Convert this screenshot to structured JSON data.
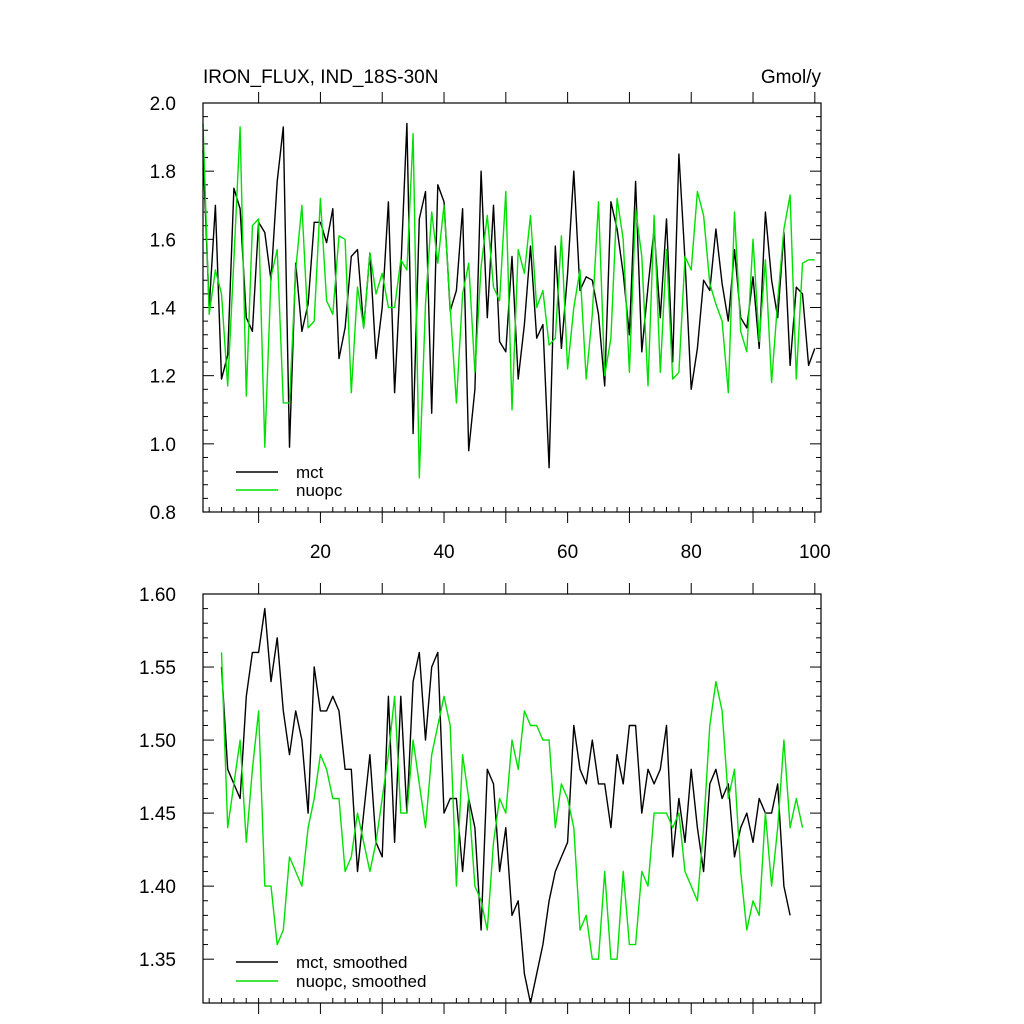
{
  "colors": {
    "mct": "#000000",
    "nuopc": "#00e000"
  },
  "chart_data": [
    {
      "type": "line",
      "title": "IRON_FLUX, IND_18S-30N",
      "units": "Gmol/y",
      "xlim": [
        1,
        101
      ],
      "ylim": [
        0.8,
        2.0
      ],
      "yticks": [
        0.8,
        1.0,
        1.2,
        1.4,
        1.6,
        1.8,
        2.0
      ],
      "ytick_labels": [
        "0.8",
        "1.0",
        "1.2",
        "1.4",
        "1.6",
        "1.8",
        "2.0"
      ],
      "xticks": [
        20,
        40,
        60,
        80,
        100
      ],
      "xtick_labels": [
        "20",
        "40",
        "60",
        "80",
        "100"
      ],
      "legend": "bottom-left",
      "series": [
        {
          "name": "mct",
          "color": "#000000",
          "x_start": 1,
          "values": [
            1.86,
            1.4,
            1.7,
            1.19,
            1.26,
            1.75,
            1.69,
            1.37,
            1.33,
            1.65,
            1.62,
            1.48,
            1.77,
            1.93,
            0.99,
            1.53,
            1.33,
            1.41,
            1.65,
            1.65,
            1.59,
            1.69,
            1.25,
            1.34,
            1.55,
            1.57,
            1.34,
            1.56,
            1.25,
            1.4,
            1.71,
            1.15,
            1.51,
            1.94,
            1.03,
            1.66,
            1.74,
            1.09,
            1.76,
            1.71,
            1.39,
            1.45,
            1.69,
            0.98,
            1.16,
            1.8,
            1.37,
            1.7,
            1.3,
            1.27,
            1.55,
            1.19,
            1.35,
            1.58,
            1.31,
            1.35,
            0.93,
            1.58,
            1.28,
            1.5,
            1.8,
            1.45,
            1.49,
            1.48,
            1.38,
            1.17,
            1.71,
            1.63,
            1.5,
            1.32,
            1.77,
            1.27,
            1.46,
            1.63,
            1.37,
            1.66,
            1.24,
            1.85,
            1.54,
            1.16,
            1.28,
            1.48,
            1.45,
            1.63,
            1.47,
            1.36,
            1.57,
            1.37,
            1.34,
            1.49,
            1.28,
            1.68,
            1.48,
            1.37,
            1.62,
            1.23,
            1.46,
            1.44,
            1.23,
            1.28
          ]
        },
        {
          "name": "nuopc",
          "color": "#00e000",
          "x_start": 1,
          "values": [
            1.94,
            1.38,
            1.51,
            1.44,
            1.17,
            1.54,
            1.93,
            1.14,
            1.64,
            1.66,
            0.99,
            1.49,
            1.57,
            1.12,
            1.12,
            1.51,
            1.7,
            1.34,
            1.36,
            1.72,
            1.42,
            1.38,
            1.61,
            1.6,
            1.15,
            1.46,
            1.34,
            1.56,
            1.44,
            1.5,
            1.4,
            1.4,
            1.54,
            1.51,
            1.91,
            0.9,
            1.41,
            1.68,
            1.53,
            1.7,
            1.4,
            1.12,
            1.44,
            1.53,
            1.21,
            1.52,
            1.67,
            1.46,
            1.42,
            1.74,
            1.1,
            1.57,
            1.5,
            1.67,
            1.4,
            1.45,
            1.29,
            1.31,
            1.61,
            1.22,
            1.4,
            1.51,
            1.19,
            1.38,
            1.71,
            1.2,
            1.31,
            1.72,
            1.6,
            1.21,
            1.69,
            1.55,
            1.17,
            1.67,
            1.21,
            1.57,
            1.19,
            1.21,
            1.55,
            1.51,
            1.74,
            1.67,
            1.47,
            1.41,
            1.36,
            1.15,
            1.68,
            1.33,
            1.27,
            1.6,
            1.3,
            1.54,
            1.18,
            1.42,
            1.63,
            1.73,
            1.19,
            1.53,
            1.54,
            1.54
          ]
        }
      ],
      "legend_entries": [
        "mct",
        "nuopc"
      ]
    },
    {
      "type": "line",
      "xlim": [
        1,
        101
      ],
      "ylim": [
        1.32,
        1.6
      ],
      "yticks": [
        1.35,
        1.4,
        1.45,
        1.5,
        1.55,
        1.6
      ],
      "ytick_labels": [
        "1.35",
        "1.40",
        "1.45",
        "1.50",
        "1.55",
        "1.60"
      ],
      "xticks": [
        20,
        40,
        60,
        80,
        100
      ],
      "legend": "bottom-left",
      "series": [
        {
          "name": "mct, smoothed",
          "color": "#000000",
          "x_start": 4,
          "values": [
            1.55,
            1.48,
            1.47,
            1.46,
            1.53,
            1.56,
            1.56,
            1.59,
            1.54,
            1.57,
            1.52,
            1.49,
            1.52,
            1.5,
            1.45,
            1.55,
            1.52,
            1.52,
            1.53,
            1.52,
            1.48,
            1.48,
            1.41,
            1.45,
            1.49,
            1.43,
            1.42,
            1.53,
            1.43,
            1.53,
            1.45,
            1.54,
            1.56,
            1.5,
            1.55,
            1.56,
            1.45,
            1.46,
            1.46,
            1.41,
            1.46,
            1.44,
            1.37,
            1.48,
            1.47,
            1.41,
            1.44,
            1.38,
            1.39,
            1.34,
            1.32,
            1.34,
            1.36,
            1.39,
            1.41,
            1.42,
            1.43,
            1.51,
            1.48,
            1.47,
            1.5,
            1.47,
            1.47,
            1.44,
            1.49,
            1.47,
            1.51,
            1.51,
            1.45,
            1.48,
            1.47,
            1.48,
            1.51,
            1.42,
            1.46,
            1.43,
            1.48,
            1.44,
            1.41,
            1.47,
            1.48,
            1.46,
            1.47,
            1.42,
            1.44,
            1.45,
            1.43,
            1.46,
            1.45,
            1.45,
            1.47,
            1.4,
            1.38
          ]
        },
        {
          "name": "nuopc, smoothed",
          "color": "#00e000",
          "x_start": 4,
          "values": [
            1.56,
            1.44,
            1.47,
            1.5,
            1.43,
            1.48,
            1.52,
            1.4,
            1.4,
            1.36,
            1.37,
            1.42,
            1.41,
            1.4,
            1.44,
            1.46,
            1.49,
            1.48,
            1.46,
            1.46,
            1.41,
            1.42,
            1.45,
            1.43,
            1.41,
            1.43,
            1.46,
            1.49,
            1.53,
            1.45,
            1.45,
            1.5,
            1.47,
            1.44,
            1.49,
            1.51,
            1.53,
            1.51,
            1.4,
            1.49,
            1.46,
            1.4,
            1.39,
            1.37,
            1.43,
            1.46,
            1.45,
            1.5,
            1.48,
            1.52,
            1.51,
            1.51,
            1.5,
            1.5,
            1.44,
            1.47,
            1.46,
            1.44,
            1.37,
            1.38,
            1.35,
            1.35,
            1.41,
            1.35,
            1.35,
            1.41,
            1.36,
            1.36,
            1.41,
            1.4,
            1.45,
            1.45,
            1.45,
            1.44,
            1.45,
            1.41,
            1.4,
            1.39,
            1.44,
            1.51,
            1.54,
            1.52,
            1.46,
            1.48,
            1.41,
            1.37,
            1.39,
            1.38,
            1.45,
            1.4,
            1.44,
            1.5,
            1.44,
            1.46,
            1.44
          ]
        }
      ],
      "legend_entries": [
        "mct, smoothed",
        "nuopc, smoothed"
      ]
    }
  ]
}
